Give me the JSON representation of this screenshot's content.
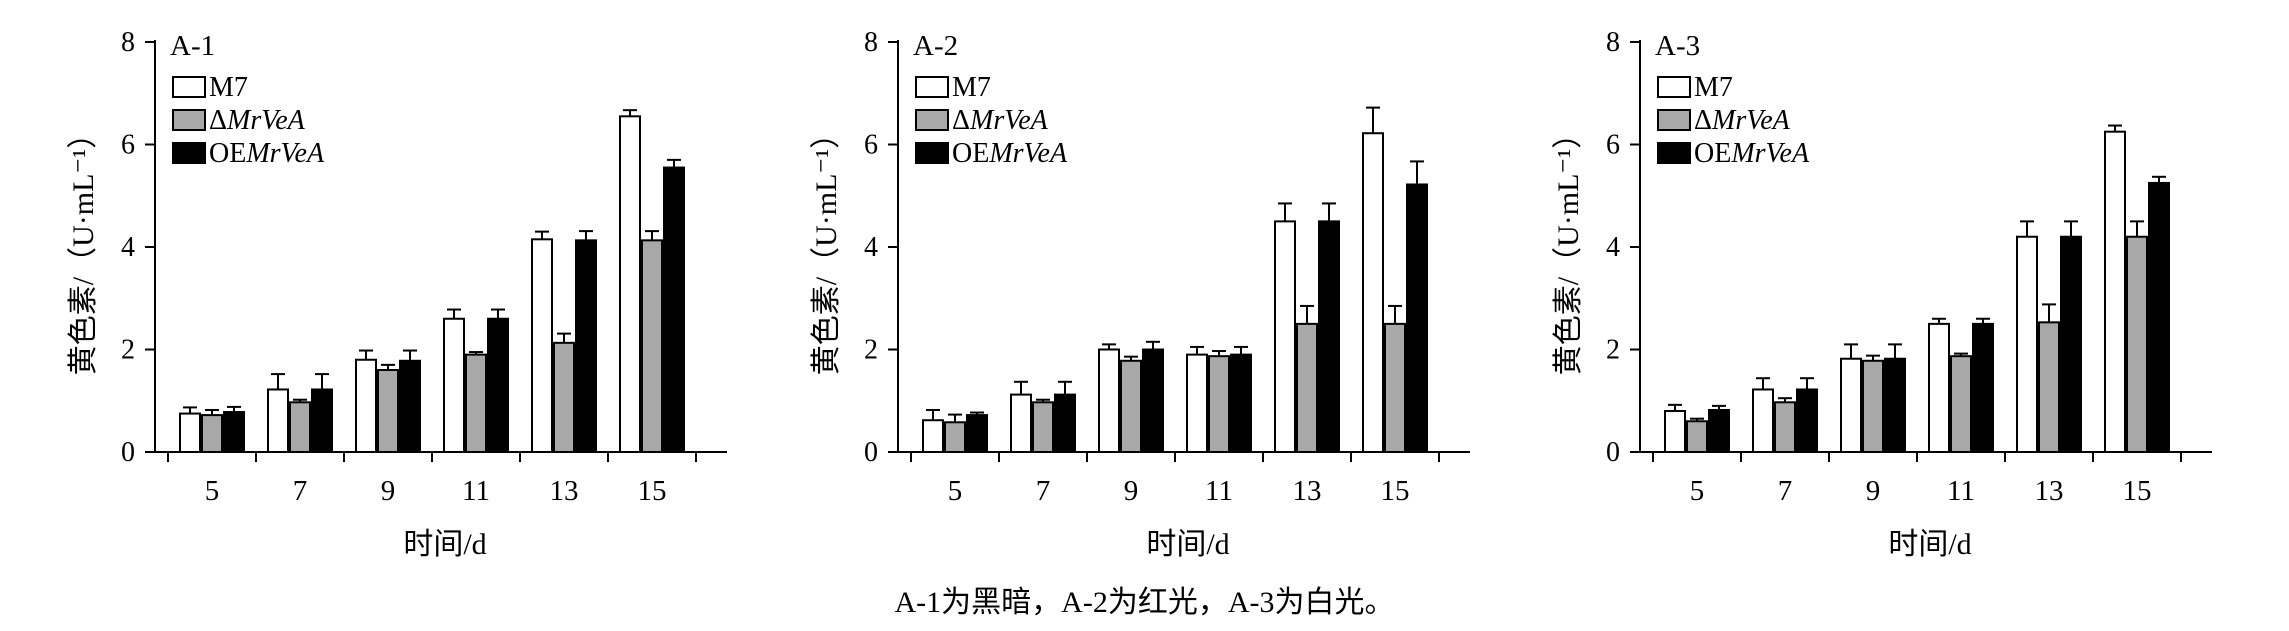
{
  "caption": "A-1为黑暗，A-2为红光，A-3为白光。",
  "chart_data": [
    {
      "type": "bar",
      "title": "A-1",
      "categories": [
        "5",
        "7",
        "9",
        "11",
        "13",
        "15"
      ],
      "xlabel": "时间/d",
      "ylabel": "黄色素/（U·mL⁻¹）",
      "ylim": [
        0,
        8
      ],
      "yticks": [
        "0",
        "2",
        "4",
        "6",
        "8"
      ],
      "grid": false,
      "legend_position": "top-left",
      "error_bars": true,
      "series": [
        {
          "name": "M7",
          "color": "#ffffff",
          "values": [
            0.75,
            1.22,
            1.8,
            2.6,
            4.15,
            6.55
          ],
          "errors": [
            0.12,
            0.3,
            0.18,
            0.18,
            0.15,
            0.12
          ]
        },
        {
          "name": "ΔMrVeA",
          "color": "#a8a8a8",
          "values": [
            0.72,
            0.97,
            1.6,
            1.9,
            2.13,
            4.13
          ],
          "errors": [
            0.1,
            0.05,
            0.1,
            0.05,
            0.18,
            0.18
          ]
        },
        {
          "name": "OEMrVeA",
          "color": "#000000",
          "values": [
            0.78,
            1.22,
            1.78,
            2.6,
            4.13,
            5.55
          ],
          "errors": [
            0.1,
            0.3,
            0.2,
            0.18,
            0.18,
            0.15
          ]
        }
      ]
    },
    {
      "type": "bar",
      "title": "A-2",
      "categories": [
        "5",
        "7",
        "9",
        "11",
        "13",
        "15"
      ],
      "xlabel": "时间/d",
      "ylabel": "黄色素/（U·mL⁻¹）",
      "ylim": [
        0,
        8
      ],
      "yticks": [
        "0",
        "2",
        "4",
        "6",
        "8"
      ],
      "grid": false,
      "legend_position": "top-left",
      "error_bars": true,
      "series": [
        {
          "name": "M7",
          "color": "#ffffff",
          "values": [
            0.62,
            1.12,
            2.0,
            1.9,
            4.5,
            6.22
          ],
          "errors": [
            0.2,
            0.25,
            0.1,
            0.15,
            0.35,
            0.5
          ]
        },
        {
          "name": "ΔMrVeA",
          "color": "#a8a8a8",
          "values": [
            0.58,
            0.97,
            1.78,
            1.87,
            2.5,
            2.5
          ],
          "errors": [
            0.15,
            0.05,
            0.08,
            0.1,
            0.35,
            0.35
          ]
        },
        {
          "name": "OEMrVeA",
          "color": "#000000",
          "values": [
            0.72,
            1.12,
            2.0,
            1.9,
            4.5,
            5.22
          ],
          "errors": [
            0.05,
            0.25,
            0.15,
            0.15,
            0.35,
            0.45
          ]
        }
      ]
    },
    {
      "type": "bar",
      "title": "A-3",
      "categories": [
        "5",
        "7",
        "9",
        "11",
        "13",
        "15"
      ],
      "xlabel": "时间/d",
      "ylabel": "黄色素/（U·mL⁻¹）",
      "ylim": [
        0,
        8
      ],
      "yticks": [
        "0",
        "2",
        "4",
        "6",
        "8"
      ],
      "grid": false,
      "legend_position": "top-left",
      "error_bars": true,
      "series": [
        {
          "name": "M7",
          "color": "#ffffff",
          "values": [
            0.8,
            1.22,
            1.82,
            2.5,
            4.2,
            6.25
          ],
          "errors": [
            0.12,
            0.22,
            0.28,
            0.1,
            0.3,
            0.12
          ]
        },
        {
          "name": "ΔMrVeA",
          "color": "#a8a8a8",
          "values": [
            0.6,
            0.97,
            1.78,
            1.87,
            2.53,
            4.2
          ],
          "errors": [
            0.05,
            0.08,
            0.1,
            0.05,
            0.35,
            0.3
          ]
        },
        {
          "name": "OEMrVeA",
          "color": "#000000",
          "values": [
            0.82,
            1.22,
            1.82,
            2.5,
            4.2,
            5.25
          ],
          "errors": [
            0.08,
            0.22,
            0.28,
            0.1,
            0.3,
            0.12
          ]
        }
      ]
    }
  ]
}
